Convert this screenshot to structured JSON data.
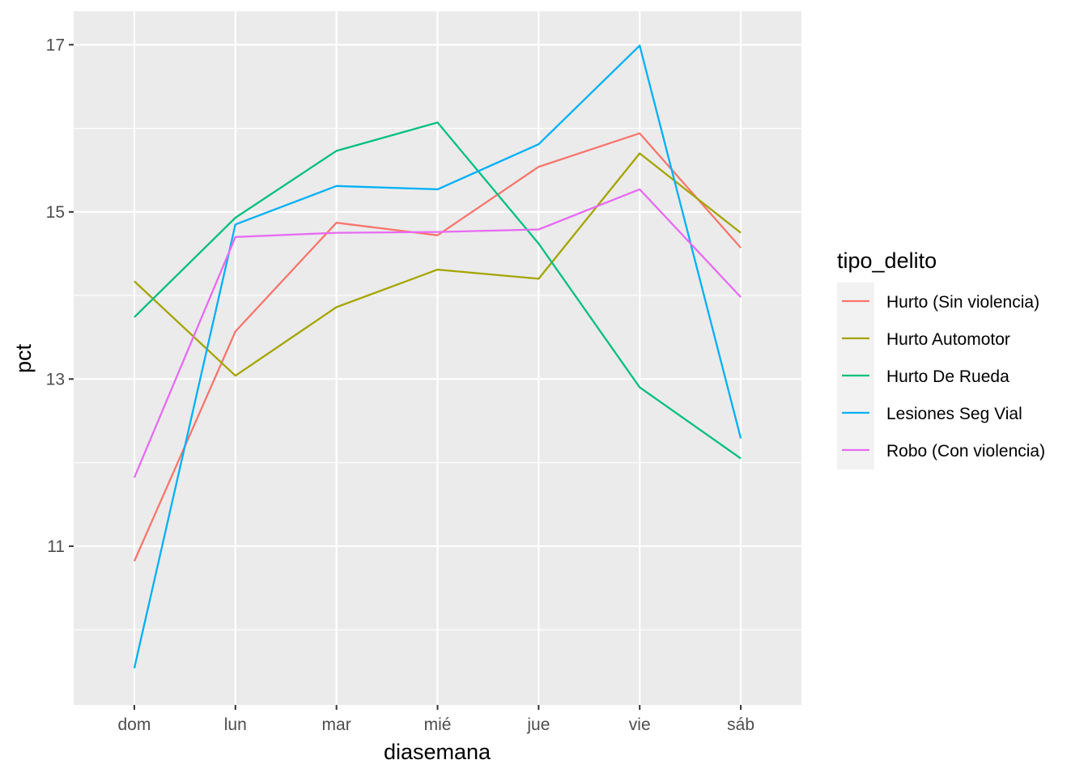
{
  "chart_data": {
    "type": "line",
    "xlabel": "diasemana",
    "ylabel": "pct",
    "categories": [
      "dom",
      "lun",
      "mar",
      "mié",
      "jue",
      "vie",
      "sáb"
    ],
    "ylim": [
      9.1,
      17.4
    ],
    "yticks": [
      11,
      13,
      15,
      17
    ],
    "y_minor_grid": [
      10,
      12,
      14,
      16
    ],
    "grid": true,
    "legend_title": "tipo_delito",
    "legend_position": "right",
    "series": [
      {
        "name": "Hurto (Sin violencia)",
        "color": "#F8766D",
        "values": [
          10.82,
          13.57,
          14.87,
          14.72,
          15.54,
          15.94,
          14.57
        ]
      },
      {
        "name": "Hurto Automotor",
        "color": "#A3A500",
        "values": [
          14.17,
          13.04,
          13.86,
          14.31,
          14.2,
          15.7,
          14.75
        ]
      },
      {
        "name": "Hurto De Rueda",
        "color": "#00BF7D",
        "values": [
          13.74,
          14.93,
          15.73,
          16.07,
          14.62,
          12.9,
          12.05
        ]
      },
      {
        "name": "Lesiones Seg Vial",
        "color": "#00B0F6",
        "values": [
          9.54,
          14.85,
          15.31,
          15.27,
          15.81,
          16.99,
          12.29
        ]
      },
      {
        "name": "Robo (Con violencia)",
        "color": "#E76BF3",
        "values": [
          11.82,
          14.7,
          14.75,
          14.76,
          14.79,
          15.27,
          13.98
        ]
      }
    ]
  }
}
